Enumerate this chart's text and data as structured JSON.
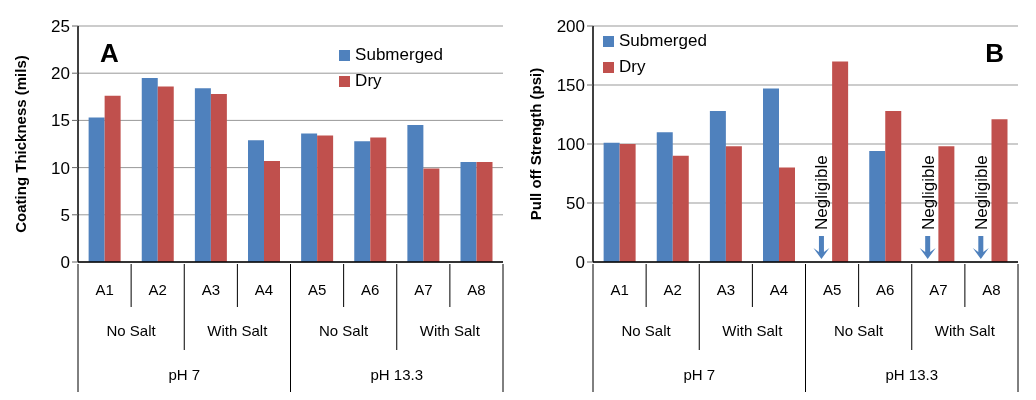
{
  "chart_data": [
    {
      "type": "bar",
      "title": "A",
      "ylabel": "Coating Thickness (mils)",
      "categories": [
        "A1",
        "A2",
        "A3",
        "A4",
        "A5",
        "A6",
        "A7",
        "A8"
      ],
      "series": [
        {
          "name": "Submerged",
          "color": "#4f81bd",
          "values": [
            15.3,
            19.5,
            18.4,
            12.9,
            13.6,
            12.8,
            14.5,
            10.6
          ]
        },
        {
          "name": "Dry",
          "color": "#c0504d",
          "values": [
            17.6,
            18.6,
            17.8,
            10.7,
            13.4,
            13.2,
            9.9,
            10.6
          ]
        }
      ],
      "ylim": [
        0,
        25
      ],
      "yticks": [
        0,
        5,
        10,
        15,
        20,
        25
      ],
      "grid": "y",
      "legend": "top right",
      "annotations": [
        "No Salt",
        "With Salt",
        "No Salt",
        "With Salt",
        "pH 7",
        "pH 13.3"
      ]
    },
    {
      "type": "bar",
      "title": "B",
      "ylabel": "Pull off Strength (psi)",
      "categories": [
        "A1",
        "A2",
        "A3",
        "A4",
        "A5",
        "A6",
        "A7",
        "A8"
      ],
      "series": [
        {
          "name": "Submerged",
          "color": "#4f81bd",
          "values": [
            101,
            110,
            128,
            147,
            null,
            94,
            null,
            null
          ]
        },
        {
          "name": "Dry",
          "color": "#c0504d",
          "values": [
            100,
            90,
            98,
            80,
            170,
            128,
            98,
            121
          ]
        }
      ],
      "ylim": [
        0,
        200
      ],
      "yticks": [
        0,
        50,
        100,
        150,
        200
      ],
      "grid": "y",
      "legend": "top left",
      "annotations": [
        "No Salt",
        "With Salt",
        "No Salt",
        "With Salt",
        "pH 7",
        "pH 13.3",
        {
          "text": "Negligible",
          "x": "A5",
          "y": 0
        },
        {
          "text": "Negligible",
          "x": "A7",
          "y": 0
        },
        {
          "text": "Negligible",
          "x": "A8",
          "y": 0
        }
      ]
    }
  ]
}
